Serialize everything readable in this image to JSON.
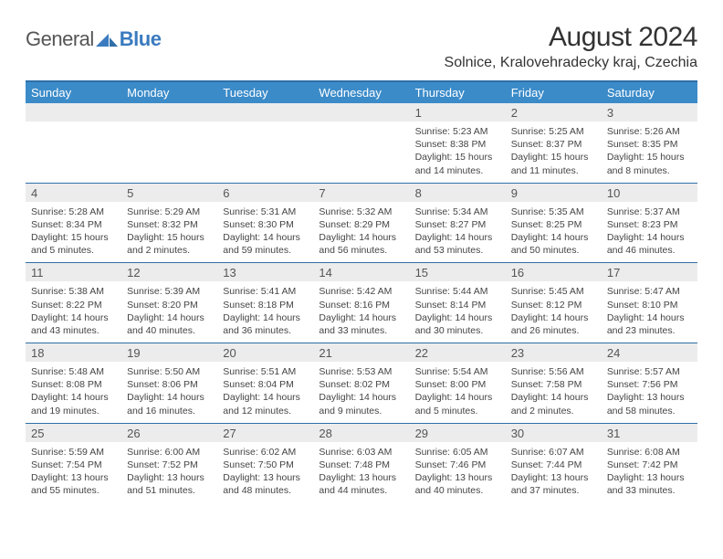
{
  "brand": {
    "part1": "General",
    "part2": "Blue"
  },
  "title": "August 2024",
  "location": "Solnice, Kralovehradecky kraj, Czechia",
  "dow": [
    "Sunday",
    "Monday",
    "Tuesday",
    "Wednesday",
    "Thursday",
    "Friday",
    "Saturday"
  ],
  "colors": {
    "header_bg": "#3b8bc9",
    "rule": "#2f6fa8",
    "daynum_bg": "#ececec",
    "brand_blue": "#3a7bbf"
  },
  "typography": {
    "title_fontsize": 30,
    "location_fontsize": 16,
    "dow_fontsize": 13,
    "cell_fontsize": 10.5
  },
  "weeks": [
    [
      {
        "n": "",
        "l1": "",
        "l2": "",
        "l3": "",
        "l4": ""
      },
      {
        "n": "",
        "l1": "",
        "l2": "",
        "l3": "",
        "l4": ""
      },
      {
        "n": "",
        "l1": "",
        "l2": "",
        "l3": "",
        "l4": ""
      },
      {
        "n": "",
        "l1": "",
        "l2": "",
        "l3": "",
        "l4": ""
      },
      {
        "n": "1",
        "l1": "Sunrise: 5:23 AM",
        "l2": "Sunset: 8:38 PM",
        "l3": "Daylight: 15 hours",
        "l4": "and 14 minutes."
      },
      {
        "n": "2",
        "l1": "Sunrise: 5:25 AM",
        "l2": "Sunset: 8:37 PM",
        "l3": "Daylight: 15 hours",
        "l4": "and 11 minutes."
      },
      {
        "n": "3",
        "l1": "Sunrise: 5:26 AM",
        "l2": "Sunset: 8:35 PM",
        "l3": "Daylight: 15 hours",
        "l4": "and 8 minutes."
      }
    ],
    [
      {
        "n": "4",
        "l1": "Sunrise: 5:28 AM",
        "l2": "Sunset: 8:34 PM",
        "l3": "Daylight: 15 hours",
        "l4": "and 5 minutes."
      },
      {
        "n": "5",
        "l1": "Sunrise: 5:29 AM",
        "l2": "Sunset: 8:32 PM",
        "l3": "Daylight: 15 hours",
        "l4": "and 2 minutes."
      },
      {
        "n": "6",
        "l1": "Sunrise: 5:31 AM",
        "l2": "Sunset: 8:30 PM",
        "l3": "Daylight: 14 hours",
        "l4": "and 59 minutes."
      },
      {
        "n": "7",
        "l1": "Sunrise: 5:32 AM",
        "l2": "Sunset: 8:29 PM",
        "l3": "Daylight: 14 hours",
        "l4": "and 56 minutes."
      },
      {
        "n": "8",
        "l1": "Sunrise: 5:34 AM",
        "l2": "Sunset: 8:27 PM",
        "l3": "Daylight: 14 hours",
        "l4": "and 53 minutes."
      },
      {
        "n": "9",
        "l1": "Sunrise: 5:35 AM",
        "l2": "Sunset: 8:25 PM",
        "l3": "Daylight: 14 hours",
        "l4": "and 50 minutes."
      },
      {
        "n": "10",
        "l1": "Sunrise: 5:37 AM",
        "l2": "Sunset: 8:23 PM",
        "l3": "Daylight: 14 hours",
        "l4": "and 46 minutes."
      }
    ],
    [
      {
        "n": "11",
        "l1": "Sunrise: 5:38 AM",
        "l2": "Sunset: 8:22 PM",
        "l3": "Daylight: 14 hours",
        "l4": "and 43 minutes."
      },
      {
        "n": "12",
        "l1": "Sunrise: 5:39 AM",
        "l2": "Sunset: 8:20 PM",
        "l3": "Daylight: 14 hours",
        "l4": "and 40 minutes."
      },
      {
        "n": "13",
        "l1": "Sunrise: 5:41 AM",
        "l2": "Sunset: 8:18 PM",
        "l3": "Daylight: 14 hours",
        "l4": "and 36 minutes."
      },
      {
        "n": "14",
        "l1": "Sunrise: 5:42 AM",
        "l2": "Sunset: 8:16 PM",
        "l3": "Daylight: 14 hours",
        "l4": "and 33 minutes."
      },
      {
        "n": "15",
        "l1": "Sunrise: 5:44 AM",
        "l2": "Sunset: 8:14 PM",
        "l3": "Daylight: 14 hours",
        "l4": "and 30 minutes."
      },
      {
        "n": "16",
        "l1": "Sunrise: 5:45 AM",
        "l2": "Sunset: 8:12 PM",
        "l3": "Daylight: 14 hours",
        "l4": "and 26 minutes."
      },
      {
        "n": "17",
        "l1": "Sunrise: 5:47 AM",
        "l2": "Sunset: 8:10 PM",
        "l3": "Daylight: 14 hours",
        "l4": "and 23 minutes."
      }
    ],
    [
      {
        "n": "18",
        "l1": "Sunrise: 5:48 AM",
        "l2": "Sunset: 8:08 PM",
        "l3": "Daylight: 14 hours",
        "l4": "and 19 minutes."
      },
      {
        "n": "19",
        "l1": "Sunrise: 5:50 AM",
        "l2": "Sunset: 8:06 PM",
        "l3": "Daylight: 14 hours",
        "l4": "and 16 minutes."
      },
      {
        "n": "20",
        "l1": "Sunrise: 5:51 AM",
        "l2": "Sunset: 8:04 PM",
        "l3": "Daylight: 14 hours",
        "l4": "and 12 minutes."
      },
      {
        "n": "21",
        "l1": "Sunrise: 5:53 AM",
        "l2": "Sunset: 8:02 PM",
        "l3": "Daylight: 14 hours",
        "l4": "and 9 minutes."
      },
      {
        "n": "22",
        "l1": "Sunrise: 5:54 AM",
        "l2": "Sunset: 8:00 PM",
        "l3": "Daylight: 14 hours",
        "l4": "and 5 minutes."
      },
      {
        "n": "23",
        "l1": "Sunrise: 5:56 AM",
        "l2": "Sunset: 7:58 PM",
        "l3": "Daylight: 14 hours",
        "l4": "and 2 minutes."
      },
      {
        "n": "24",
        "l1": "Sunrise: 5:57 AM",
        "l2": "Sunset: 7:56 PM",
        "l3": "Daylight: 13 hours",
        "l4": "and 58 minutes."
      }
    ],
    [
      {
        "n": "25",
        "l1": "Sunrise: 5:59 AM",
        "l2": "Sunset: 7:54 PM",
        "l3": "Daylight: 13 hours",
        "l4": "and 55 minutes."
      },
      {
        "n": "26",
        "l1": "Sunrise: 6:00 AM",
        "l2": "Sunset: 7:52 PM",
        "l3": "Daylight: 13 hours",
        "l4": "and 51 minutes."
      },
      {
        "n": "27",
        "l1": "Sunrise: 6:02 AM",
        "l2": "Sunset: 7:50 PM",
        "l3": "Daylight: 13 hours",
        "l4": "and 48 minutes."
      },
      {
        "n": "28",
        "l1": "Sunrise: 6:03 AM",
        "l2": "Sunset: 7:48 PM",
        "l3": "Daylight: 13 hours",
        "l4": "and 44 minutes."
      },
      {
        "n": "29",
        "l1": "Sunrise: 6:05 AM",
        "l2": "Sunset: 7:46 PM",
        "l3": "Daylight: 13 hours",
        "l4": "and 40 minutes."
      },
      {
        "n": "30",
        "l1": "Sunrise: 6:07 AM",
        "l2": "Sunset: 7:44 PM",
        "l3": "Daylight: 13 hours",
        "l4": "and 37 minutes."
      },
      {
        "n": "31",
        "l1": "Sunrise: 6:08 AM",
        "l2": "Sunset: 7:42 PM",
        "l3": "Daylight: 13 hours",
        "l4": "and 33 minutes."
      }
    ]
  ]
}
